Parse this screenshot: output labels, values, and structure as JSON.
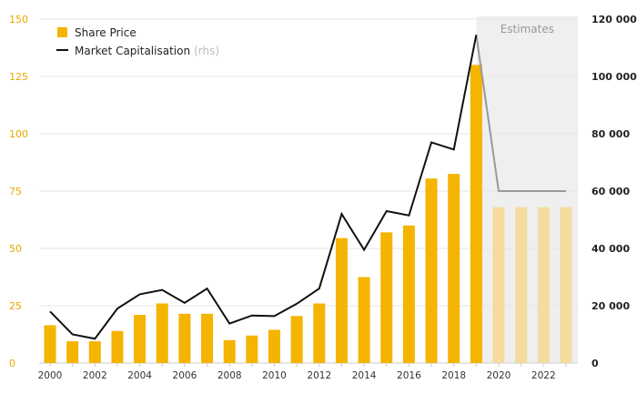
{
  "chart_data": {
    "type": "bar",
    "x": [
      2000,
      2001,
      2002,
      2003,
      2004,
      2005,
      2006,
      2007,
      2008,
      2009,
      2010,
      2011,
      2012,
      2013,
      2014,
      2015,
      2016,
      2017,
      2018,
      2019,
      2020,
      2021,
      2022,
      2023
    ],
    "x_tick_labels": [
      "2000",
      "2002",
      "2004",
      "2006",
      "2008",
      "2010",
      "2012",
      "2014",
      "2016",
      "2018",
      "2020",
      "2022"
    ],
    "series": [
      {
        "name": "Share Price",
        "kind": "bar",
        "axis": "left",
        "color": "#f5b400",
        "values": [
          16.5,
          9.5,
          9.5,
          14,
          21,
          26,
          21.5,
          21.5,
          10,
          12,
          14.5,
          20.5,
          26,
          54.5,
          37.5,
          57,
          60,
          80.5,
          82.5,
          130,
          68,
          68,
          68,
          68
        ],
        "estimate_from_index": 20,
        "estimate_color": "#f5dba0"
      },
      {
        "name": "Market Capitalisation",
        "name_suffix": "(rhs)",
        "kind": "line",
        "axis": "right",
        "color": "#111111",
        "values": [
          18000,
          10000,
          8500,
          19000,
          24000,
          25500,
          21000,
          26000,
          13800,
          16600,
          16400,
          20700,
          26000,
          52000,
          39500,
          53000,
          51500,
          77000,
          74500,
          114500,
          60000,
          60000,
          60000,
          60000
        ],
        "estimate_from_index": 19,
        "estimate_color": "#999999"
      }
    ],
    "left_axis": {
      "ylim": [
        0,
        150
      ],
      "ticks": [
        "0",
        "25",
        "50",
        "75",
        "100",
        "125",
        "150"
      ],
      "tick_color": "#e8a800"
    },
    "right_axis": {
      "ylim": [
        0,
        120000
      ],
      "ticks": [
        "0",
        "20 000",
        "40 000",
        "60 000",
        "80 000",
        "100 000",
        "120 000"
      ]
    },
    "estimates": {
      "label": "Estimates",
      "from_year": 2019.5,
      "shade_color": "#efefef"
    },
    "grid": "horizontal",
    "legend_position": "top-left"
  }
}
